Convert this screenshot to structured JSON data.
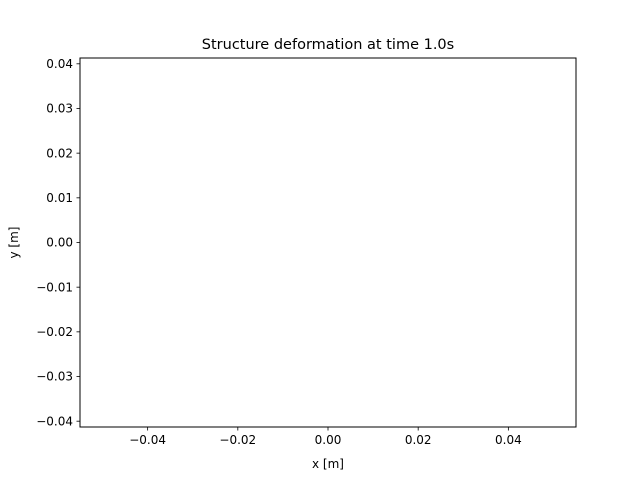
{
  "chart_data": {
    "type": "line",
    "title": "Structure deformation at time 1.0s",
    "xlabel": "x [m]",
    "ylabel": "y [m]",
    "xlim": [
      -0.055,
      0.055
    ],
    "ylim": [
      -0.0413,
      0.0413
    ],
    "xticks": [
      -0.04,
      -0.02,
      0.0,
      0.02,
      0.04
    ],
    "xtick_labels": [
      "−0.04",
      "−0.02",
      "0.00",
      "0.02",
      "0.04"
    ],
    "yticks": [
      0.04,
      0.03,
      0.02,
      0.01,
      0.0,
      -0.01,
      -0.02,
      -0.03,
      -0.04
    ],
    "ytick_labels": [
      "0.04",
      "0.03",
      "0.02",
      "0.01",
      "0.00",
      "−0.01",
      "−0.02",
      "−0.03",
      "−0.04"
    ],
    "series": [],
    "grid": false,
    "legend": false
  }
}
